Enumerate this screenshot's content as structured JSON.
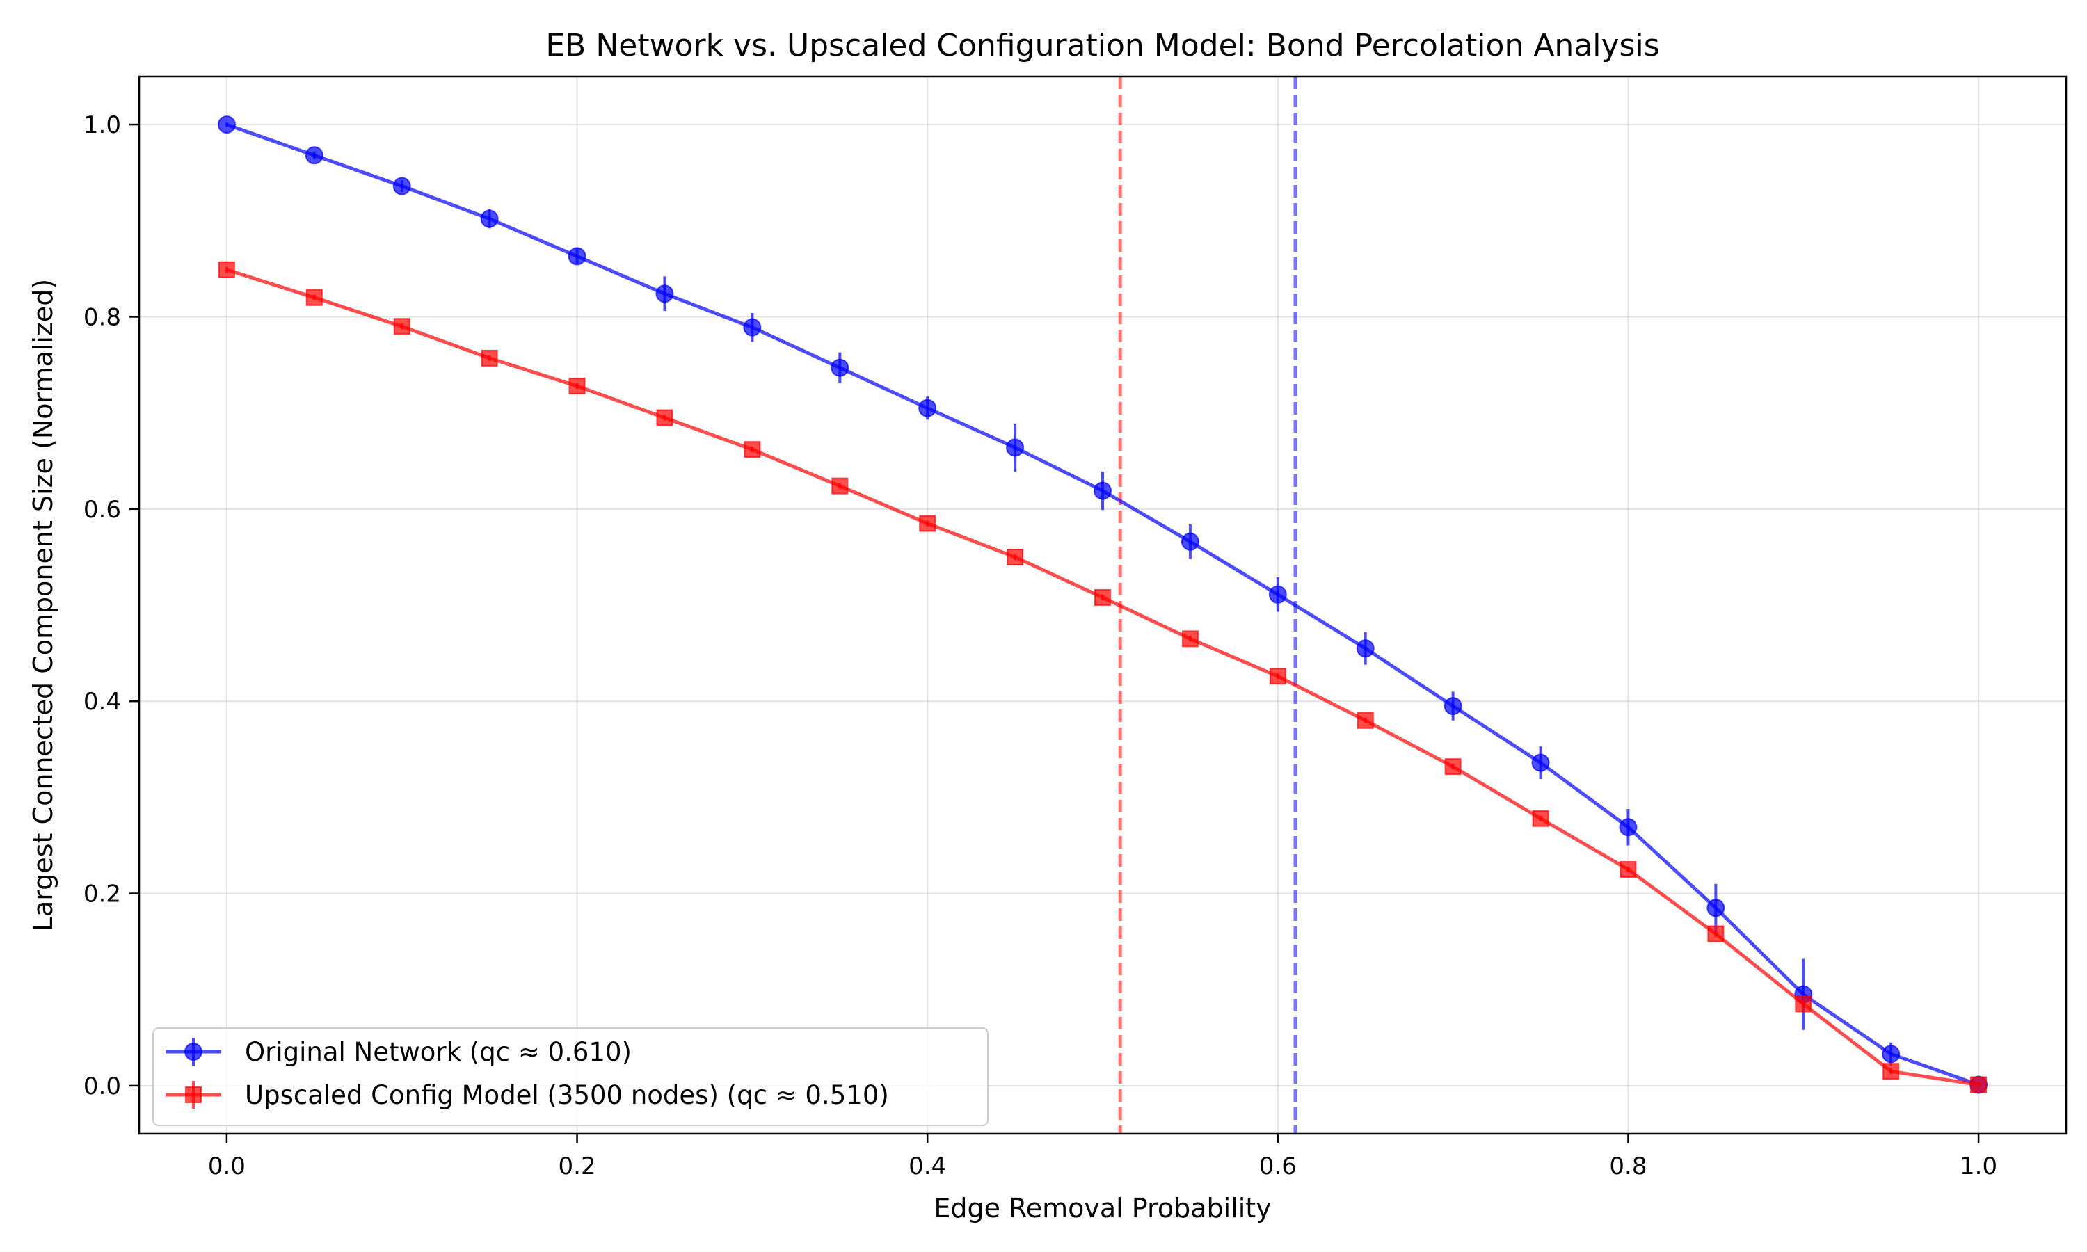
{
  "chart_data": {
    "type": "line",
    "title": "EB Network vs. Upscaled Configuration Model: Bond Percolation Analysis",
    "xlabel": "Edge Removal Probability",
    "ylabel": "Largest Connected Component Size (Normalized)",
    "xlim": [
      -0.05,
      1.05
    ],
    "ylim": [
      -0.05,
      1.05
    ],
    "xticks": [
      0.0,
      0.2,
      0.4,
      0.6,
      0.8,
      1.0
    ],
    "xtick_labels": [
      "0.0",
      "0.2",
      "0.4",
      "0.6",
      "0.8",
      "1.0"
    ],
    "yticks": [
      0.0,
      0.2,
      0.4,
      0.6,
      0.8,
      1.0
    ],
    "ytick_labels": [
      "0.0",
      "0.2",
      "0.4",
      "0.6",
      "0.8",
      "1.0"
    ],
    "grid": true,
    "legend_position": "lower-left",
    "x": [
      0.0,
      0.05,
      0.1,
      0.15,
      0.2,
      0.25,
      0.3,
      0.35,
      0.4,
      0.45,
      0.5,
      0.55,
      0.6,
      0.65,
      0.7,
      0.75,
      0.8,
      0.85,
      0.9,
      0.95,
      1.0
    ],
    "series": [
      {
        "name": "Original Network (qc ≈ 0.610)",
        "color": "#0000ff",
        "marker": "circle",
        "values": [
          1.0,
          0.968,
          0.936,
          0.902,
          0.863,
          0.824,
          0.789,
          0.747,
          0.705,
          0.664,
          0.619,
          0.566,
          0.511,
          0.455,
          0.395,
          0.336,
          0.269,
          0.185,
          0.095,
          0.033,
          0.001
        ],
        "errors": [
          0.002,
          0.004,
          0.006,
          0.01,
          0.008,
          0.018,
          0.015,
          0.016,
          0.012,
          0.025,
          0.02,
          0.018,
          0.018,
          0.017,
          0.015,
          0.017,
          0.019,
          0.025,
          0.037,
          0.012,
          0.002
        ]
      },
      {
        "name": "Upscaled Config Model (3500 nodes) (qc ≈ 0.510)",
        "color": "#ff0000",
        "marker": "square",
        "values": [
          0.849,
          0.82,
          0.79,
          0.757,
          0.728,
          0.695,
          0.662,
          0.624,
          0.585,
          0.55,
          0.508,
          0.465,
          0.426,
          0.38,
          0.332,
          0.278,
          0.225,
          0.158,
          0.085,
          0.015,
          0.001
        ],
        "errors": [
          0.003,
          0.003,
          0.003,
          0.003,
          0.003,
          0.003,
          0.003,
          0.003,
          0.003,
          0.003,
          0.003,
          0.003,
          0.003,
          0.003,
          0.003,
          0.003,
          0.003,
          0.003,
          0.004,
          0.003,
          0.002
        ]
      }
    ],
    "vlines": [
      {
        "x": 0.51,
        "color": "#ff0000",
        "style": "dashed"
      },
      {
        "x": 0.61,
        "color": "#0000ff",
        "style": "dashed"
      }
    ]
  }
}
